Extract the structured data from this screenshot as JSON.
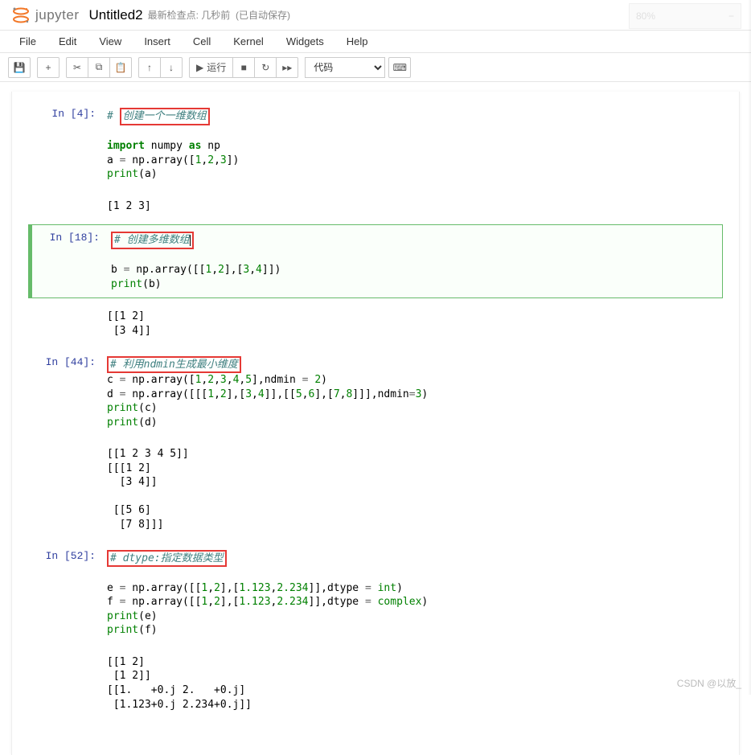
{
  "header": {
    "logo_text": "jupyter",
    "notebook_title": "Untitled2",
    "checkpoint": "最新检查点: 几秒前",
    "autosave": "(已自动保存)",
    "zoom_value": "80%",
    "zoom_minus": "−"
  },
  "menubar": {
    "file": "File",
    "edit": "Edit",
    "view": "View",
    "insert": "Insert",
    "cell": "Cell",
    "kernel": "Kernel",
    "widgets": "Widgets",
    "help": "Help"
  },
  "toolbar": {
    "run_label": "运行",
    "cell_type": "代码",
    "icons": {
      "save": "💾",
      "add": "+",
      "cut": "✂",
      "copy": "⧉",
      "paste": "📋",
      "up": "↑",
      "down": "↓",
      "run": "▶",
      "stop": "■",
      "restart": "↻",
      "ff": "▸▸",
      "cmd": "⌨"
    }
  },
  "cells": [
    {
      "prompt_label": "In  [4]:",
      "comment_box": "创建一个一维数组",
      "code_lines": [
        {
          "type": "blank"
        },
        {
          "type": "tokens",
          "tokens": [
            {
              "c": "kw",
              "t": "import"
            },
            {
              "c": "sp",
              "t": " "
            },
            {
              "c": "nn",
              "t": "numpy"
            },
            {
              "c": "sp",
              "t": " "
            },
            {
              "c": "kw",
              "t": "as"
            },
            {
              "c": "sp",
              "t": " "
            },
            {
              "c": "nn",
              "t": "np"
            }
          ]
        },
        {
          "type": "tokens",
          "tokens": [
            {
              "c": "n",
              "t": "a "
            },
            {
              "c": "op",
              "t": "="
            },
            {
              "c": "n",
              "t": " np"
            },
            {
              "c": "p",
              "t": "."
            },
            {
              "c": "n",
              "t": "array"
            },
            {
              "c": "p",
              "t": "(["
            },
            {
              "c": "num",
              "t": "1"
            },
            {
              "c": "p",
              "t": ","
            },
            {
              "c": "num",
              "t": "2"
            },
            {
              "c": "p",
              "t": ","
            },
            {
              "c": "num",
              "t": "3"
            },
            {
              "c": "p",
              "t": "])"
            }
          ]
        },
        {
          "type": "tokens",
          "tokens": [
            {
              "c": "builtin",
              "t": "print"
            },
            {
              "c": "p",
              "t": "("
            },
            {
              "c": "n",
              "t": "a"
            },
            {
              "c": "p",
              "t": ")"
            }
          ]
        }
      ],
      "output": [
        "[1 2 3]"
      ]
    },
    {
      "prompt_label": "In  [18]:",
      "selected": true,
      "comment_box": "# 创建多维数组",
      "show_cursor": true,
      "code_lines": [
        {
          "type": "blank"
        },
        {
          "type": "tokens",
          "tokens": [
            {
              "c": "n",
              "t": "b "
            },
            {
              "c": "op",
              "t": "="
            },
            {
              "c": "n",
              "t": " np"
            },
            {
              "c": "p",
              "t": "."
            },
            {
              "c": "n",
              "t": "array"
            },
            {
              "c": "p",
              "t": "([["
            },
            {
              "c": "num",
              "t": "1"
            },
            {
              "c": "p",
              "t": ","
            },
            {
              "c": "num",
              "t": "2"
            },
            {
              "c": "p",
              "t": "],["
            },
            {
              "c": "num",
              "t": "3"
            },
            {
              "c": "p",
              "t": ","
            },
            {
              "c": "num",
              "t": "4"
            },
            {
              "c": "p",
              "t": "]])"
            }
          ]
        },
        {
          "type": "tokens",
          "tokens": [
            {
              "c": "builtin",
              "t": "print"
            },
            {
              "c": "p",
              "t": "("
            },
            {
              "c": "n",
              "t": "b"
            },
            {
              "c": "p",
              "t": ")"
            }
          ]
        }
      ],
      "output": [
        "[[1 2]",
        " [3 4]]"
      ]
    },
    {
      "prompt_label": "In  [44]:",
      "comment_box_inline": true,
      "comment_box": "# 利用ndmin生成最小维度",
      "no_top_margin": true,
      "code_lines": [
        {
          "type": "tokens",
          "tokens": [
            {
              "c": "n",
              "t": "c "
            },
            {
              "c": "op",
              "t": "="
            },
            {
              "c": "n",
              "t": " np"
            },
            {
              "c": "p",
              "t": "."
            },
            {
              "c": "n",
              "t": "array"
            },
            {
              "c": "p",
              "t": "(["
            },
            {
              "c": "num",
              "t": "1"
            },
            {
              "c": "p",
              "t": ","
            },
            {
              "c": "num",
              "t": "2"
            },
            {
              "c": "p",
              "t": ","
            },
            {
              "c": "num",
              "t": "3"
            },
            {
              "c": "p",
              "t": ","
            },
            {
              "c": "num",
              "t": "4"
            },
            {
              "c": "p",
              "t": ","
            },
            {
              "c": "num",
              "t": "5"
            },
            {
              "c": "p",
              "t": "],"
            },
            {
              "c": "n",
              "t": "ndmin "
            },
            {
              "c": "op",
              "t": "="
            },
            {
              "c": "n",
              "t": " "
            },
            {
              "c": "num",
              "t": "2"
            },
            {
              "c": "p",
              "t": ")"
            }
          ]
        },
        {
          "type": "tokens",
          "tokens": [
            {
              "c": "n",
              "t": "d "
            },
            {
              "c": "op",
              "t": "="
            },
            {
              "c": "n",
              "t": " np"
            },
            {
              "c": "p",
              "t": "."
            },
            {
              "c": "n",
              "t": "array"
            },
            {
              "c": "p",
              "t": "([[["
            },
            {
              "c": "num",
              "t": "1"
            },
            {
              "c": "p",
              "t": ","
            },
            {
              "c": "num",
              "t": "2"
            },
            {
              "c": "p",
              "t": "],["
            },
            {
              "c": "num",
              "t": "3"
            },
            {
              "c": "p",
              "t": ","
            },
            {
              "c": "num",
              "t": "4"
            },
            {
              "c": "p",
              "t": "]],[["
            },
            {
              "c": "num",
              "t": "5"
            },
            {
              "c": "p",
              "t": ","
            },
            {
              "c": "num",
              "t": "6"
            },
            {
              "c": "p",
              "t": "],["
            },
            {
              "c": "num",
              "t": "7"
            },
            {
              "c": "p",
              "t": ","
            },
            {
              "c": "num",
              "t": "8"
            },
            {
              "c": "p",
              "t": "]]],"
            },
            {
              "c": "n",
              "t": "ndmin"
            },
            {
              "c": "op",
              "t": "="
            },
            {
              "c": "num",
              "t": "3"
            },
            {
              "c": "p",
              "t": ")"
            }
          ]
        },
        {
          "type": "tokens",
          "tokens": [
            {
              "c": "builtin",
              "t": "print"
            },
            {
              "c": "p",
              "t": "("
            },
            {
              "c": "n",
              "t": "c"
            },
            {
              "c": "p",
              "t": ")"
            }
          ]
        },
        {
          "type": "tokens",
          "tokens": [
            {
              "c": "builtin",
              "t": "print"
            },
            {
              "c": "p",
              "t": "("
            },
            {
              "c": "n",
              "t": "d"
            },
            {
              "c": "p",
              "t": ")"
            }
          ]
        }
      ],
      "output": [
        "[[1 2 3 4 5]]",
        "[[[1 2]",
        "  [3 4]]",
        "",
        " [[5 6]",
        "  [7 8]]]"
      ]
    },
    {
      "prompt_label": "In  [52]:",
      "comment_box": "# dtype:指定数据类型",
      "code_lines": [
        {
          "type": "blank"
        },
        {
          "type": "tokens",
          "tokens": [
            {
              "c": "n",
              "t": "e "
            },
            {
              "c": "op",
              "t": "="
            },
            {
              "c": "n",
              "t": " np"
            },
            {
              "c": "p",
              "t": "."
            },
            {
              "c": "n",
              "t": "array"
            },
            {
              "c": "p",
              "t": "([["
            },
            {
              "c": "num",
              "t": "1"
            },
            {
              "c": "p",
              "t": ","
            },
            {
              "c": "num",
              "t": "2"
            },
            {
              "c": "p",
              "t": "],["
            },
            {
              "c": "num",
              "t": "1.123"
            },
            {
              "c": "p",
              "t": ","
            },
            {
              "c": "num",
              "t": "2.234"
            },
            {
              "c": "p",
              "t": "]],"
            },
            {
              "c": "n",
              "t": "dtype "
            },
            {
              "c": "op",
              "t": "="
            },
            {
              "c": "n",
              "t": " "
            },
            {
              "c": "builtin",
              "t": "int"
            },
            {
              "c": "p",
              "t": ")"
            }
          ]
        },
        {
          "type": "tokens",
          "tokens": [
            {
              "c": "n",
              "t": "f "
            },
            {
              "c": "op",
              "t": "="
            },
            {
              "c": "n",
              "t": " np"
            },
            {
              "c": "p",
              "t": "."
            },
            {
              "c": "n",
              "t": "array"
            },
            {
              "c": "p",
              "t": "([["
            },
            {
              "c": "num",
              "t": "1"
            },
            {
              "c": "p",
              "t": ","
            },
            {
              "c": "num",
              "t": "2"
            },
            {
              "c": "p",
              "t": "],["
            },
            {
              "c": "num",
              "t": "1.123"
            },
            {
              "c": "p",
              "t": ","
            },
            {
              "c": "num",
              "t": "2.234"
            },
            {
              "c": "p",
              "t": "]],"
            },
            {
              "c": "n",
              "t": "dtype "
            },
            {
              "c": "op",
              "t": "="
            },
            {
              "c": "n",
              "t": " "
            },
            {
              "c": "builtin",
              "t": "complex"
            },
            {
              "c": "p",
              "t": ")"
            }
          ]
        },
        {
          "type": "tokens",
          "tokens": [
            {
              "c": "builtin",
              "t": "print"
            },
            {
              "c": "p",
              "t": "("
            },
            {
              "c": "n",
              "t": "e"
            },
            {
              "c": "p",
              "t": ")"
            }
          ]
        },
        {
          "type": "tokens",
          "tokens": [
            {
              "c": "builtin",
              "t": "print"
            },
            {
              "c": "p",
              "t": "("
            },
            {
              "c": "n",
              "t": "f"
            },
            {
              "c": "p",
              "t": ")"
            }
          ]
        }
      ],
      "output": [
        "[[1 2]",
        " [1 2]]",
        "[[1.   +0.j 2.   +0.j]",
        " [1.123+0.j 2.234+0.j]]"
      ]
    }
  ],
  "watermark": "CSDN @以放_",
  "colors": {
    "comment": "#408080",
    "keyword": "#008000",
    "number": "#008000",
    "operator": "#666666",
    "builtin": "#008000",
    "promptIn": "#303F9F",
    "redbox": "#e53935",
    "selBorder": "#66BB6A"
  }
}
